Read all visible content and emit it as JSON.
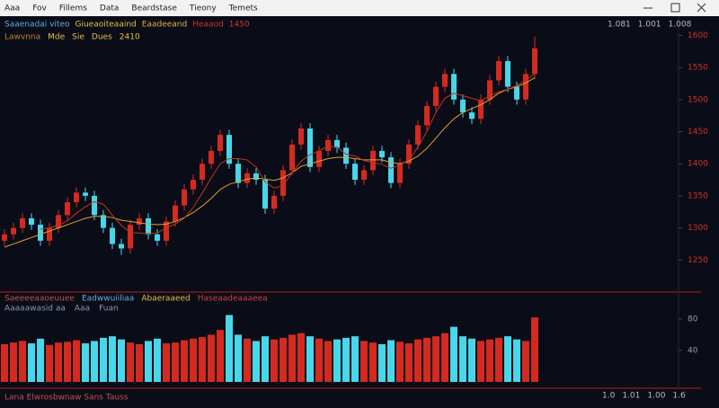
{
  "menu": [
    "Aaa",
    "Fov",
    "Fillems",
    "Data",
    "Beardstase",
    "Tieony",
    "Temets"
  ],
  "status_top": [
    "1.081",
    "1.001",
    "1.008"
  ],
  "indicator_row_1": [
    "Saaenadai viteo",
    "Giueaoiteaaind",
    "Eaadeeand",
    "Heaaod",
    "1450"
  ],
  "indicator_row_2": [
    "Lawvnna",
    "Mde",
    "Sie",
    "Dues",
    "2410"
  ],
  "lower_row_1": [
    "Saeeeeaaoeuuee",
    "Eadwwuiiliaa",
    "Abaeraaeed",
    "Haseaadeaaaeea"
  ],
  "lower_row_2": [
    "Aaaaawasid aa",
    "Aaa",
    "Fuan"
  ],
  "footer_left": "Lana Elwrosbwnaw Sans Tauss",
  "footer_right": [
    "1.0",
    "1.01",
    "1.00",
    "1.6"
  ],
  "chart_data": {
    "type": "candlestick",
    "up_color": "#d42a20",
    "down_color": "#48d6ea",
    "ylim": [
      1200,
      1630
    ],
    "yticks": [
      1600,
      1550,
      1500,
      1450,
      1400,
      1350,
      1300,
      1250
    ],
    "open": [
      1280,
      1290,
      1300,
      1315,
      1305,
      1280,
      1300,
      1320,
      1340,
      1355,
      1350,
      1320,
      1300,
      1275,
      1268,
      1305,
      1315,
      1290,
      1280,
      1310,
      1335,
      1360,
      1375,
      1400,
      1420,
      1445,
      1400,
      1370,
      1385,
      1375,
      1330,
      1350,
      1390,
      1430,
      1455,
      1395,
      1420,
      1437,
      1425,
      1400,
      1375,
      1390,
      1420,
      1410,
      1370,
      1400,
      1430,
      1460,
      1490,
      1520,
      1540,
      1500,
      1480,
      1470,
      1500,
      1530,
      1560,
      1520,
      1500,
      1540
    ],
    "high": [
      1298,
      1308,
      1323,
      1323,
      1313,
      1308,
      1328,
      1348,
      1363,
      1363,
      1358,
      1328,
      1308,
      1283,
      1313,
      1323,
      1323,
      1298,
      1318,
      1343,
      1368,
      1383,
      1408,
      1428,
      1453,
      1453,
      1408,
      1393,
      1393,
      1383,
      1358,
      1398,
      1438,
      1463,
      1463,
      1428,
      1445,
      1445,
      1433,
      1408,
      1398,
      1428,
      1428,
      1418,
      1408,
      1438,
      1468,
      1498,
      1528,
      1548,
      1548,
      1508,
      1488,
      1508,
      1538,
      1568,
      1568,
      1528,
      1548,
      1598
    ],
    "low": [
      1272,
      1282,
      1292,
      1297,
      1272,
      1272,
      1292,
      1312,
      1332,
      1342,
      1312,
      1292,
      1267,
      1258,
      1260,
      1297,
      1282,
      1272,
      1272,
      1302,
      1327,
      1352,
      1367,
      1392,
      1412,
      1392,
      1362,
      1362,
      1367,
      1322,
      1322,
      1342,
      1382,
      1422,
      1387,
      1387,
      1412,
      1417,
      1392,
      1367,
      1367,
      1382,
      1402,
      1362,
      1362,
      1392,
      1422,
      1452,
      1482,
      1512,
      1492,
      1472,
      1462,
      1462,
      1492,
      1522,
      1512,
      1492,
      1492,
      1532
    ],
    "close": [
      1290,
      1300,
      1315,
      1305,
      1280,
      1300,
      1320,
      1340,
      1355,
      1350,
      1320,
      1300,
      1275,
      1268,
      1305,
      1315,
      1290,
      1280,
      1310,
      1335,
      1360,
      1375,
      1400,
      1420,
      1445,
      1400,
      1370,
      1385,
      1375,
      1330,
      1350,
      1390,
      1430,
      1455,
      1395,
      1420,
      1437,
      1425,
      1400,
      1375,
      1390,
      1420,
      1410,
      1370,
      1400,
      1430,
      1460,
      1490,
      1520,
      1540,
      1500,
      1480,
      1470,
      1500,
      1530,
      1560,
      1520,
      1500,
      1540,
      1580
    ],
    "overlays": [
      {
        "color": "#e0a030",
        "values": [
          1270,
          1275,
          1280,
          1285,
          1290,
          1295,
          1300,
          1305,
          1310,
          1315,
          1318,
          1318,
          1316,
          1312,
          1310,
          1308,
          1306,
          1305,
          1306,
          1310,
          1316,
          1324,
          1334,
          1346,
          1360,
          1368,
          1372,
          1376,
          1378,
          1376,
          1374,
          1378,
          1386,
          1396,
          1400,
          1404,
          1408,
          1410,
          1410,
          1408,
          1406,
          1406,
          1406,
          1402,
          1400,
          1404,
          1412,
          1424,
          1440,
          1456,
          1470,
          1480,
          1486,
          1492,
          1500,
          1510,
          1516,
          1520,
          1526,
          1534
        ]
      },
      {
        "color": "#c8321e",
        "values": [
          null,
          null,
          null,
          null,
          1298,
          1300,
          1304,
          1311,
          1323,
          1333,
          1341,
          1337,
          1320,
          1304,
          1293,
          1292,
          1291,
          1292,
          1300,
          1306,
          1315,
          1332,
          1354,
          1378,
          1400,
          1408,
          1408,
          1406,
          1395,
          1372,
          1362,
          1366,
          1386,
          1404,
          1414,
          1420,
          1427,
          1426,
          1415,
          1412,
          1405,
          1402,
          1399,
          1393,
          1398,
          1406,
          1426,
          1450,
          1480,
          1502,
          1510,
          1506,
          1502,
          1498,
          1506,
          1512,
          1516,
          1522,
          1530,
          1540
        ]
      }
    ],
    "lower": {
      "ylim": [
        0,
        105
      ],
      "yticks": [
        80,
        40
      ],
      "values": [
        48,
        50,
        52,
        49,
        55,
        47,
        50,
        51,
        53,
        49,
        52,
        56,
        58,
        54,
        50,
        48,
        52,
        55,
        49,
        50,
        53,
        55,
        57,
        60,
        66,
        85,
        60,
        55,
        52,
        58,
        54,
        56,
        60,
        62,
        58,
        55,
        52,
        54,
        56,
        58,
        52,
        50,
        48,
        53,
        51,
        49,
        54,
        56,
        58,
        62,
        70,
        58,
        55,
        52,
        54,
        56,
        58,
        54,
        52,
        82
      ]
    }
  }
}
